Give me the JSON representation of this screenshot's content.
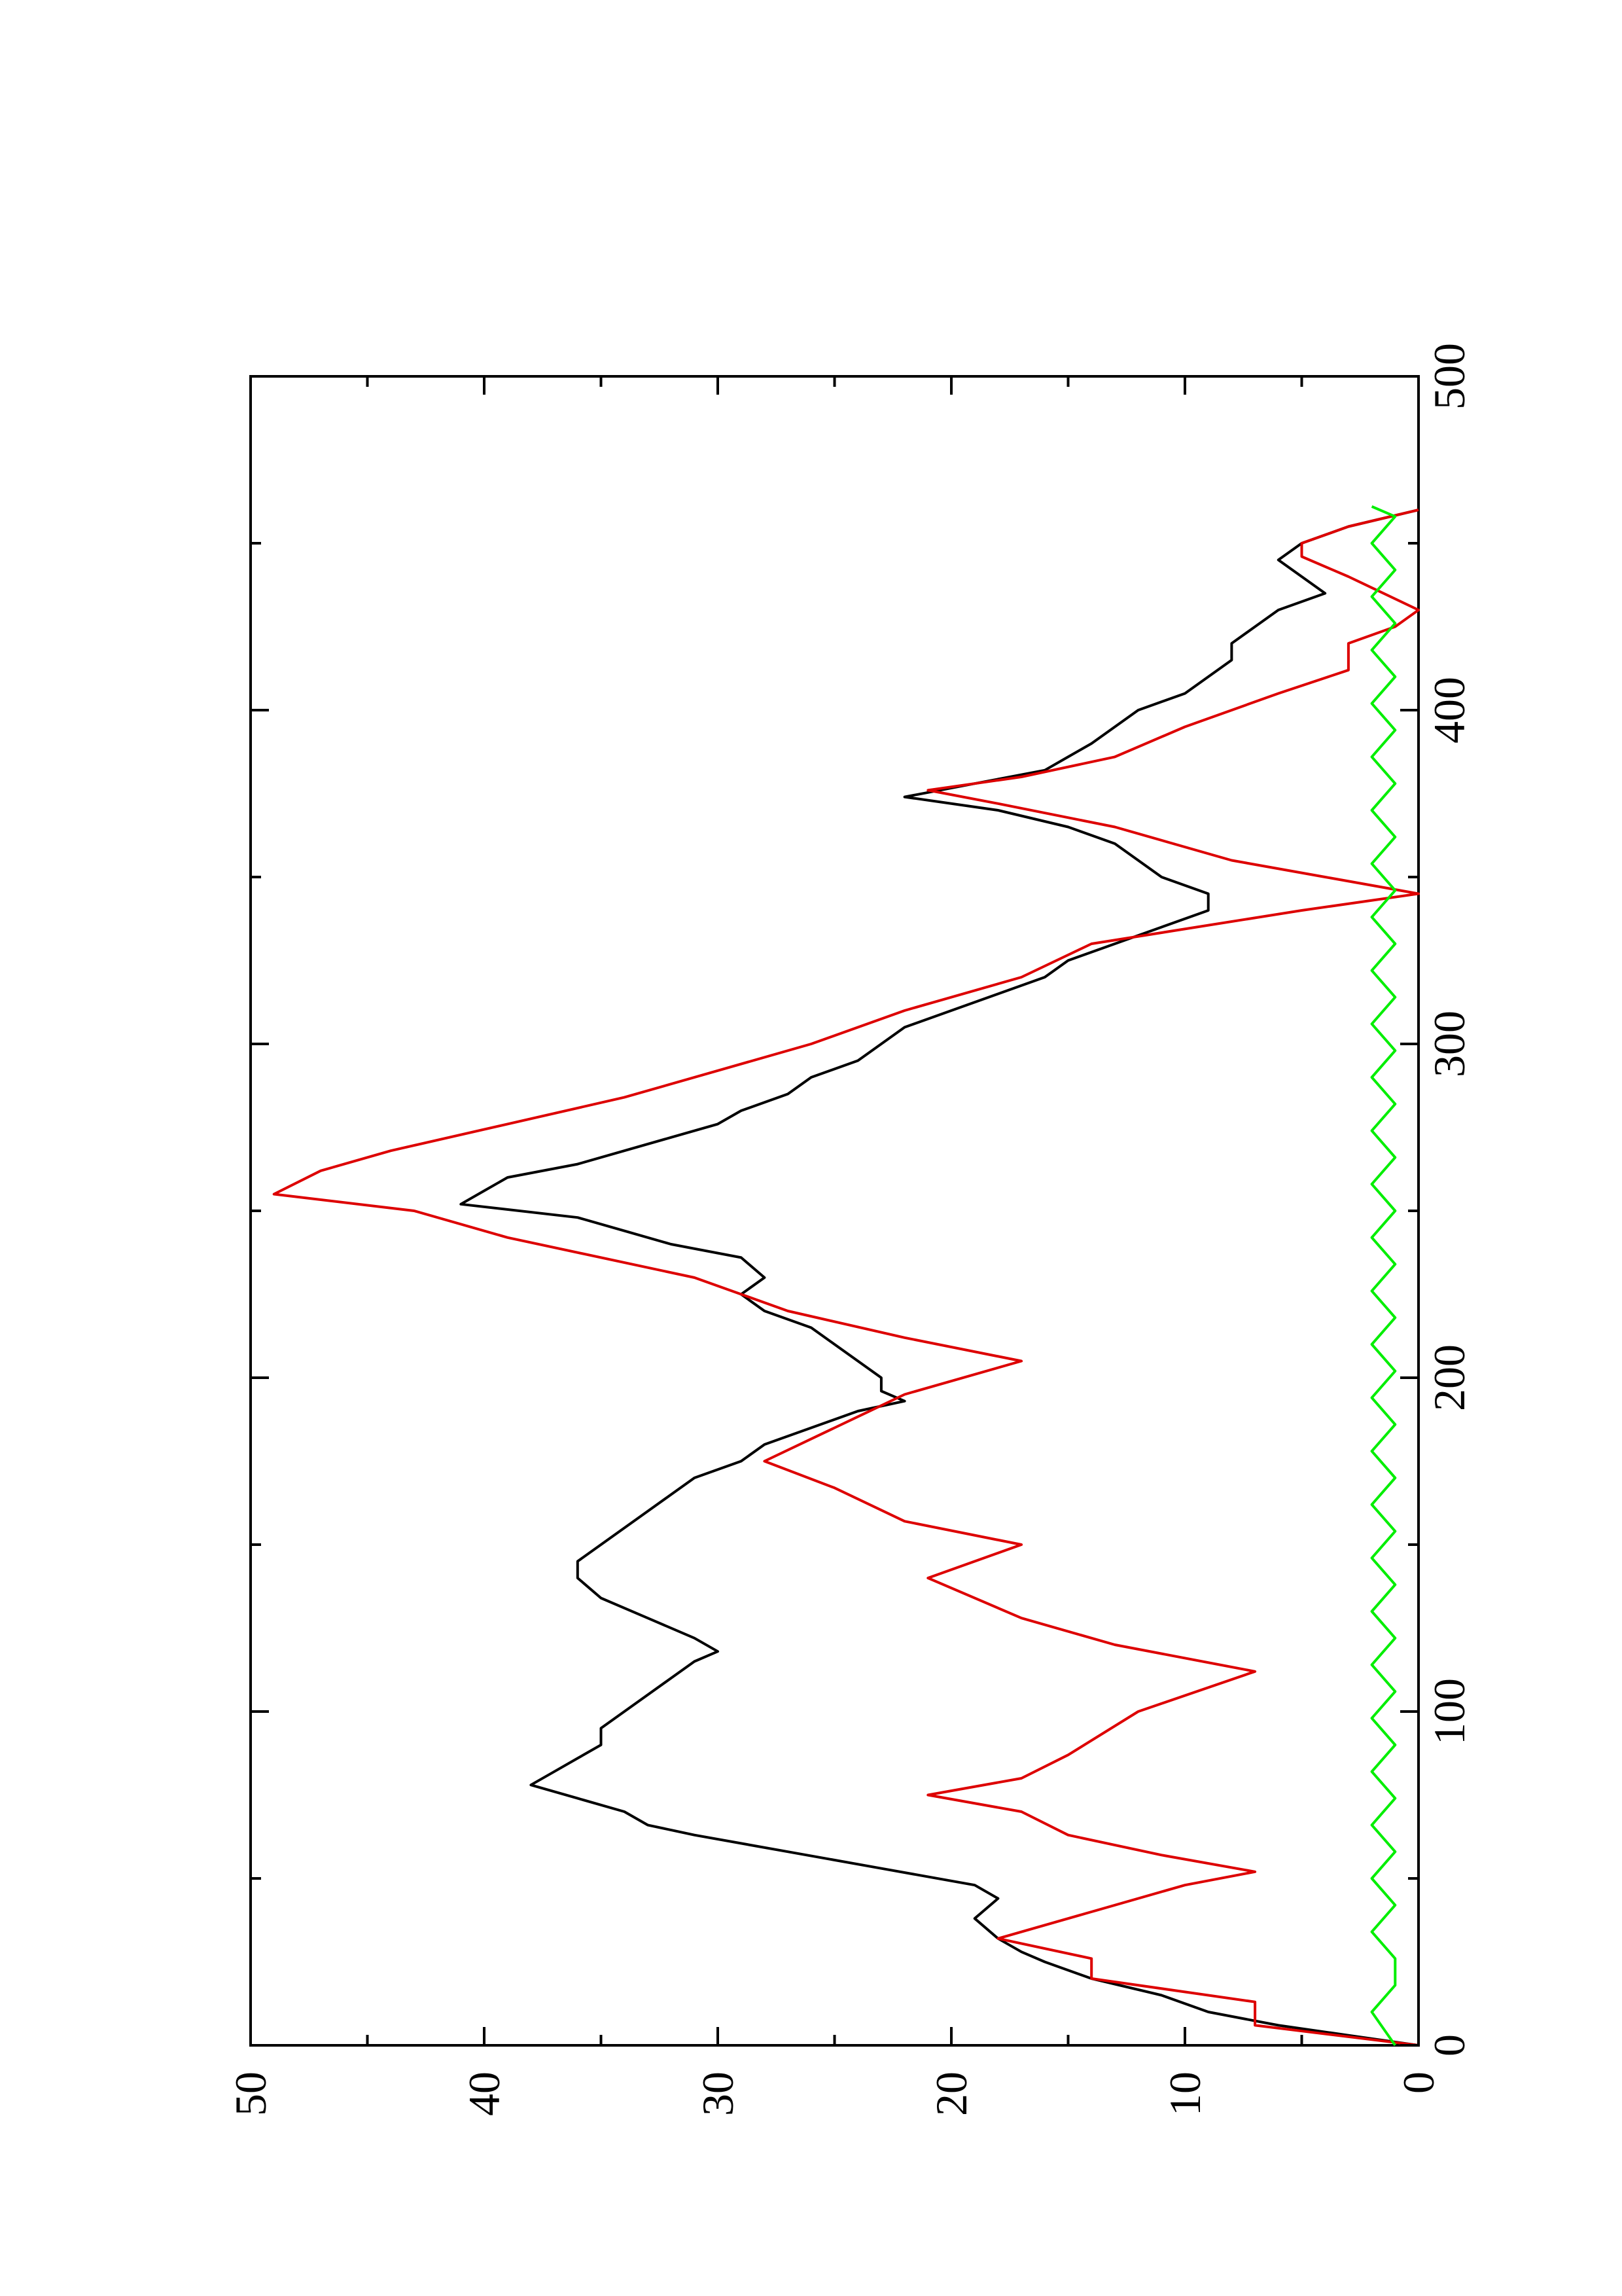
{
  "chart_data": {
    "type": "line",
    "title": "",
    "xlabel": "",
    "ylabel": "",
    "xlim": [
      0,
      500
    ],
    "ylim": [
      0,
      50
    ],
    "xticks": [
      0,
      100,
      200,
      300,
      400,
      500
    ],
    "yticks": [
      0,
      10,
      20,
      30,
      40,
      50
    ],
    "xtick_labels": [
      "0",
      "100",
      "200",
      "300",
      "400",
      "500"
    ],
    "ytick_labels": [
      "0",
      "10",
      "20",
      "30",
      "40",
      "50"
    ],
    "grid": false,
    "legend": "none",
    "orientation": "page rotated 90 degrees counter-clockwise",
    "series": [
      {
        "color": "#000000",
        "points": [
          [
            0,
            0
          ],
          [
            3,
            3
          ],
          [
            6,
            6
          ],
          [
            10,
            9
          ],
          [
            15,
            11
          ],
          [
            20,
            14
          ],
          [
            25,
            16
          ],
          [
            28,
            17
          ],
          [
            32,
            18
          ],
          [
            38,
            19
          ],
          [
            44,
            18
          ],
          [
            48,
            19
          ],
          [
            53,
            23
          ],
          [
            58,
            27
          ],
          [
            63,
            31
          ],
          [
            66,
            33
          ],
          [
            70,
            34
          ],
          [
            74,
            36
          ],
          [
            78,
            38
          ],
          [
            82,
            37
          ],
          [
            86,
            36
          ],
          [
            90,
            35
          ],
          [
            95,
            35
          ],
          [
            100,
            34
          ],
          [
            105,
            33
          ],
          [
            110,
            32
          ],
          [
            115,
            31
          ],
          [
            118,
            30
          ],
          [
            122,
            31
          ],
          [
            128,
            33
          ],
          [
            134,
            35
          ],
          [
            140,
            36
          ],
          [
            145,
            36
          ],
          [
            150,
            35
          ],
          [
            155,
            34
          ],
          [
            160,
            33
          ],
          [
            165,
            32
          ],
          [
            170,
            31
          ],
          [
            175,
            29
          ],
          [
            180,
            28
          ],
          [
            185,
            26
          ],
          [
            190,
            24
          ],
          [
            193,
            22
          ],
          [
            196,
            23
          ],
          [
            200,
            23
          ],
          [
            205,
            24
          ],
          [
            210,
            25
          ],
          [
            215,
            26
          ],
          [
            220,
            28
          ],
          [
            225,
            29
          ],
          [
            230,
            28
          ],
          [
            236,
            29
          ],
          [
            240,
            32
          ],
          [
            244,
            34
          ],
          [
            248,
            36
          ],
          [
            252,
            41
          ],
          [
            256,
            40
          ],
          [
            260,
            39
          ],
          [
            264,
            36
          ],
          [
            268,
            34
          ],
          [
            272,
            32
          ],
          [
            276,
            30
          ],
          [
            280,
            29
          ],
          [
            285,
            27
          ],
          [
            290,
            26
          ],
          [
            295,
            24
          ],
          [
            300,
            23
          ],
          [
            305,
            22
          ],
          [
            310,
            20
          ],
          [
            315,
            18
          ],
          [
            320,
            16
          ],
          [
            325,
            15
          ],
          [
            330,
            13
          ],
          [
            335,
            11
          ],
          [
            340,
            9
          ],
          [
            345,
            9
          ],
          [
            350,
            11
          ],
          [
            355,
            12
          ],
          [
            360,
            13
          ],
          [
            365,
            15
          ],
          [
            370,
            18
          ],
          [
            374,
            22
          ],
          [
            378,
            19
          ],
          [
            382,
            16
          ],
          [
            386,
            15
          ],
          [
            390,
            14
          ],
          [
            395,
            13
          ],
          [
            400,
            12
          ],
          [
            405,
            10
          ],
          [
            410,
            9
          ],
          [
            415,
            8
          ],
          [
            420,
            8
          ],
          [
            425,
            7
          ],
          [
            430,
            6
          ],
          [
            435,
            4
          ],
          [
            440,
            5
          ],
          [
            445,
            6
          ],
          [
            450,
            5
          ],
          [
            455,
            3
          ],
          [
            460,
            0
          ]
        ]
      },
      {
        "color": "#dd0000",
        "points": [
          [
            0,
            0
          ],
          [
            6,
            7
          ],
          [
            13,
            7
          ],
          [
            20,
            14
          ],
          [
            26,
            14
          ],
          [
            32,
            18
          ],
          [
            40,
            14
          ],
          [
            48,
            10
          ],
          [
            52,
            7
          ],
          [
            57,
            11
          ],
          [
            63,
            15
          ],
          [
            70,
            17
          ],
          [
            75,
            21
          ],
          [
            80,
            17
          ],
          [
            87,
            15
          ],
          [
            100,
            12
          ],
          [
            112,
            7
          ],
          [
            120,
            13
          ],
          [
            128,
            17
          ],
          [
            140,
            21
          ],
          [
            150,
            17
          ],
          [
            157,
            22
          ],
          [
            167,
            25
          ],
          [
            175,
            28
          ],
          [
            185,
            25
          ],
          [
            195,
            22
          ],
          [
            205,
            17
          ],
          [
            212,
            22
          ],
          [
            220,
            27
          ],
          [
            230,
            31
          ],
          [
            242,
            39
          ],
          [
            250,
            43
          ],
          [
            255,
            49
          ],
          [
            262,
            47
          ],
          [
            268,
            44
          ],
          [
            276,
            39
          ],
          [
            284,
            34
          ],
          [
            292,
            30
          ],
          [
            300,
            26
          ],
          [
            310,
            22
          ],
          [
            320,
            17
          ],
          [
            330,
            14
          ],
          [
            340,
            5
          ],
          [
            345,
            0
          ],
          [
            350,
            4
          ],
          [
            355,
            8
          ],
          [
            365,
            13
          ],
          [
            372,
            18
          ],
          [
            376,
            21
          ],
          [
            380,
            17
          ],
          [
            386,
            13
          ],
          [
            395,
            10
          ],
          [
            405,
            6
          ],
          [
            412,
            3
          ],
          [
            416,
            3
          ],
          [
            420,
            3
          ],
          [
            425,
            1
          ],
          [
            430,
            0
          ],
          [
            440,
            3
          ],
          [
            446,
            5
          ],
          [
            450,
            5
          ],
          [
            455,
            3
          ],
          [
            460,
            0
          ]
        ]
      },
      {
        "color": "#00ee00",
        "points": [
          [
            0,
            1
          ],
          [
            10,
            2
          ],
          [
            18,
            1
          ],
          [
            26,
            1
          ],
          [
            34,
            2
          ],
          [
            42,
            1
          ],
          [
            50,
            2
          ],
          [
            58,
            1
          ],
          [
            66,
            2
          ],
          [
            74,
            1
          ],
          [
            82,
            2
          ],
          [
            90,
            1
          ],
          [
            98,
            2
          ],
          [
            106,
            1
          ],
          [
            114,
            2
          ],
          [
            122,
            1
          ],
          [
            130,
            2
          ],
          [
            138,
            1
          ],
          [
            146,
            2
          ],
          [
            154,
            1
          ],
          [
            162,
            2
          ],
          [
            170,
            1
          ],
          [
            178,
            2
          ],
          [
            186,
            1
          ],
          [
            194,
            2
          ],
          [
            202,
            1
          ],
          [
            210,
            2
          ],
          [
            218,
            1
          ],
          [
            226,
            2
          ],
          [
            234,
            1
          ],
          [
            242,
            2
          ],
          [
            250,
            1
          ],
          [
            258,
            2
          ],
          [
            266,
            1
          ],
          [
            274,
            2
          ],
          [
            282,
            1
          ],
          [
            290,
            2
          ],
          [
            298,
            1
          ],
          [
            306,
            2
          ],
          [
            314,
            1
          ],
          [
            322,
            2
          ],
          [
            330,
            1
          ],
          [
            338,
            2
          ],
          [
            346,
            1
          ],
          [
            354,
            2
          ],
          [
            362,
            1
          ],
          [
            370,
            2
          ],
          [
            378,
            1
          ],
          [
            386,
            2
          ],
          [
            394,
            1
          ],
          [
            402,
            2
          ],
          [
            410,
            1
          ],
          [
            418,
            2
          ],
          [
            426,
            1
          ],
          [
            434,
            2
          ],
          [
            442,
            1
          ],
          [
            450,
            2
          ],
          [
            458,
            1
          ],
          [
            461,
            2
          ]
        ]
      }
    ]
  }
}
